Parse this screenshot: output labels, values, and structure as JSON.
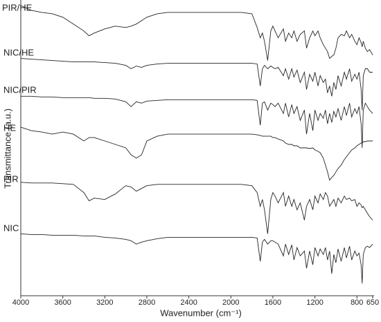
{
  "chart_data": {
    "type": "line",
    "x_label": "Wavenumber (cm⁻¹)",
    "y_label": "Transmittance (a.u.)",
    "xlim": [
      4000,
      650
    ],
    "xticks": [
      4000,
      3600,
      3200,
      2800,
      2400,
      2000,
      1600,
      1200,
      800,
      650
    ],
    "ylim": [
      0,
      430
    ],
    "x": [
      4000,
      3900,
      3800,
      3700,
      3600,
      3500,
      3400,
      3350,
      3300,
      3200,
      3100,
      3000,
      2950,
      2900,
      2850,
      2800,
      2700,
      2600,
      2400,
      2200,
      2000,
      1900,
      1800,
      1750,
      1720,
      1700,
      1680,
      1650,
      1620,
      1600,
      1580,
      1550,
      1500,
      1480,
      1450,
      1420,
      1400,
      1370,
      1340,
      1300,
      1280,
      1250,
      1220,
      1200,
      1170,
      1150,
      1120,
      1100,
      1080,
      1060,
      1040,
      1020,
      1000,
      980,
      950,
      920,
      900,
      870,
      850,
      820,
      800,
      780,
      760,
      750,
      740,
      720,
      700,
      680,
      650
    ],
    "series": [
      {
        "name": "PIR/HE",
        "color": "#222222",
        "values": [
          422,
          415,
          412,
          410,
          405,
          395,
          385,
          378,
          382,
          388,
          392,
          390,
          392,
          395,
          400,
          405,
          410,
          412,
          412,
          412,
          412,
          412,
          410,
          390,
          375,
          382,
          370,
          342,
          385,
          392,
          385,
          375,
          388,
          370,
          382,
          375,
          385,
          370,
          380,
          385,
          360,
          375,
          385,
          378,
          385,
          375,
          365,
          360,
          355,
          345,
          348,
          350,
          360,
          375,
          380,
          378,
          385,
          375,
          380,
          370,
          365,
          375,
          368,
          362,
          370,
          360,
          355,
          358,
          350
        ]
      },
      {
        "name": "NIC/HE",
        "color": "#222222",
        "values": [
          345,
          344,
          343,
          342,
          341,
          340,
          340,
          340,
          340,
          339,
          338,
          335,
          330,
          334,
          332,
          335,
          337,
          338,
          338,
          338,
          338,
          338,
          338,
          337,
          305,
          330,
          335,
          330,
          334,
          332,
          330,
          332,
          320,
          330,
          315,
          330,
          318,
          328,
          310,
          325,
          300,
          322,
          312,
          325,
          305,
          320,
          310,
          315,
          295,
          305,
          290,
          310,
          300,
          320,
          305,
          325,
          315,
          330,
          312,
          322,
          315,
          325,
          300,
          270,
          320,
          330,
          330,
          325,
          325
        ]
      },
      {
        "name": "NIC/PIR",
        "color": "#222222",
        "values": [
          290,
          290,
          289,
          289,
          288,
          288,
          288,
          288,
          287,
          287,
          286,
          282,
          275,
          282,
          280,
          283,
          284,
          285,
          285,
          285,
          285,
          285,
          285,
          284,
          248,
          280,
          282,
          270,
          280,
          278,
          275,
          280,
          265,
          280,
          260,
          278,
          265,
          275,
          255,
          270,
          235,
          265,
          240,
          270,
          255,
          265,
          258,
          270,
          250,
          265,
          252,
          268,
          260,
          272,
          255,
          275,
          262,
          280,
          260,
          272,
          265,
          275,
          250,
          215,
          270,
          280,
          275,
          270,
          265
        ]
      },
      {
        "name": "HE",
        "color": "#222222",
        "values": [
          245,
          240,
          238,
          235,
          238,
          235,
          225,
          230,
          230,
          225,
          220,
          215,
          205,
          200,
          205,
          225,
          232,
          235,
          235,
          235,
          235,
          235,
          235,
          234,
          233,
          232,
          232,
          232,
          232,
          230,
          230,
          228,
          225,
          222,
          220,
          220,
          218,
          218,
          215,
          215,
          215,
          214,
          215,
          212,
          210,
          208,
          200,
          190,
          180,
          168,
          172,
          175,
          180,
          185,
          190,
          198,
          202,
          208,
          212,
          215,
          218,
          220,
          222,
          222,
          224,
          224,
          225,
          225,
          225
        ]
      },
      {
        "name": "PIR",
        "color": "#222222",
        "values": [
          165,
          164,
          164,
          164,
          163,
          162,
          150,
          138,
          142,
          140,
          148,
          160,
          158,
          152,
          156,
          160,
          162,
          162,
          162,
          162,
          162,
          162,
          160,
          150,
          130,
          140,
          125,
          90,
          140,
          150,
          145,
          135,
          150,
          130,
          145,
          130,
          140,
          125,
          135,
          110,
          130,
          140,
          125,
          145,
          135,
          148,
          140,
          150,
          145,
          130,
          135,
          140,
          130,
          142,
          135,
          145,
          140,
          142,
          138,
          140,
          130,
          135,
          132,
          128,
          130,
          125,
          120,
          115,
          110
        ]
      },
      {
        "name": "NIC",
        "color": "#222222",
        "values": [
          90,
          89,
          89,
          88,
          88,
          88,
          87,
          87,
          87,
          85,
          84,
          82,
          80,
          75,
          78,
          80,
          83,
          85,
          85,
          85,
          85,
          85,
          85,
          84,
          50,
          78,
          82,
          75,
          80,
          80,
          78,
          75,
          58,
          75,
          60,
          74,
          52,
          70,
          58,
          65,
          40,
          65,
          45,
          70,
          58,
          68,
          60,
          70,
          52,
          65,
          32,
          60,
          48,
          68,
          50,
          70,
          55,
          72,
          52,
          65,
          58,
          62,
          45,
          18,
          60,
          70,
          72,
          70,
          75
        ]
      }
    ]
  }
}
